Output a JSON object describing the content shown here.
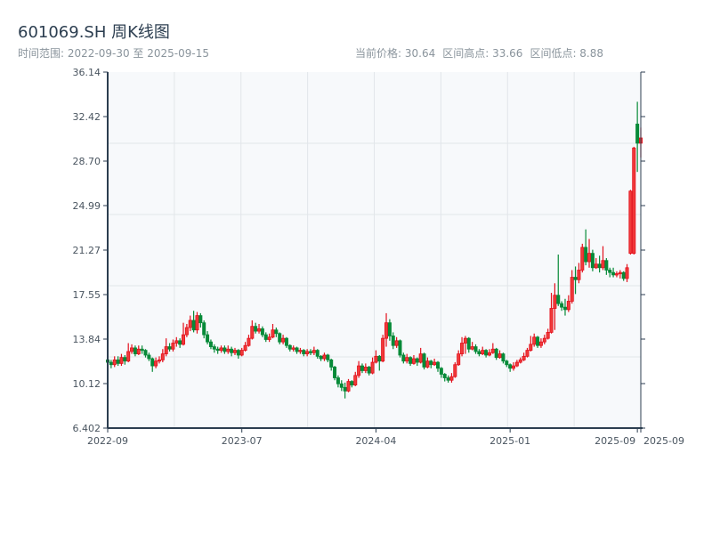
{
  "header": {
    "title": "601069.SH 周K线图",
    "subtitle": "时间范围: 2022-09-30 至 2025-09-15",
    "current_price": "当前价格: 30.64",
    "range_high": "区间高点: 33.66",
    "range_low": "区间低点: 8.88"
  },
  "chart_data": {
    "type": "candlestick",
    "frequency": "weekly",
    "start_date": "2022-09-30",
    "end_date": "2025-09-15",
    "ylim": [
      6.402,
      36.14
    ],
    "yticks": [
      "36.14",
      "32.42",
      "28.70",
      "24.99",
      "21.27",
      "17.55",
      "13.84",
      "10.12",
      "6.402"
    ],
    "xticks": [
      "2022-09",
      "2023-07",
      "2024-04",
      "2025-01",
      "2025-09",
      "2025-09"
    ],
    "grid": true,
    "colors": {
      "up": "#e3101c",
      "down": "#078a38",
      "axis": "#2c3e50",
      "grid": "#e2e6ea",
      "plot_bg": "#f7f9fb"
    },
    "open": [
      12.1,
      11.9,
      11.7,
      12.1,
      11.8,
      12.3,
      12.0,
      12.8,
      13.1,
      12.6,
      13.0,
      12.9,
      12.5,
      12.2,
      11.6,
      12.0,
      12.1,
      12.6,
      13.2,
      13.0,
      13.5,
      13.7,
      13.4,
      14.2,
      14.8,
      15.4,
      14.6,
      15.8,
      15.2,
      14.2,
      13.6,
      13.2,
      13.0,
      12.9,
      13.1,
      12.8,
      13.0,
      12.7,
      12.9,
      12.5,
      12.9,
      13.3,
      13.9,
      14.9,
      14.5,
      14.7,
      14.2,
      13.8,
      14.0,
      14.6,
      14.3,
      13.6,
      13.9,
      13.3,
      13.0,
      13.1,
      12.8,
      12.9,
      12.6,
      12.8,
      12.7,
      12.9,
      12.4,
      12.2,
      12.5,
      12.1,
      11.5,
      10.6,
      10.1,
      9.8,
      9.5,
      10.3,
      10.0,
      10.8,
      11.6,
      11.2,
      11.5,
      11.0,
      11.9,
      12.4,
      12.0,
      13.9,
      15.2,
      14.1,
      13.3,
      13.7,
      12.5,
      12.0,
      12.3,
      11.8,
      12.2,
      11.9,
      12.6,
      11.5,
      12.0,
      11.7,
      11.9,
      11.4,
      10.9,
      10.6,
      10.4,
      10.7,
      11.7,
      12.6,
      13.5,
      13.9,
      13.0,
      13.2,
      12.8,
      12.6,
      12.9,
      12.5,
      12.7,
      13.0,
      12.3,
      12.6,
      12.0,
      11.7,
      11.4,
      11.6,
      11.9,
      12.1,
      12.4,
      12.9,
      13.4,
      14.0,
      13.3,
      13.6,
      13.9,
      14.4,
      16.4,
      17.5,
      16.8,
      16.5,
      16.3,
      17.0,
      19.0,
      18.8,
      19.6,
      21.5,
      20.3,
      21.0,
      19.8,
      20.1,
      19.8,
      20.4,
      19.6,
      19.4,
      19.2,
      19.3,
      19.4,
      18.9,
      21.0,
      21.0,
      31.8,
      30.2
    ],
    "high": [
      12.3,
      12.1,
      12.4,
      12.4,
      12.6,
      12.5,
      13.5,
      13.4,
      13.3,
      13.3,
      13.3,
      13.0,
      12.7,
      12.3,
      12.3,
      12.4,
      13.0,
      13.9,
      13.5,
      13.8,
      14.0,
      13.9,
      15.2,
      15.1,
      15.8,
      16.2,
      16.1,
      16.0,
      15.4,
      14.5,
      13.8,
      13.4,
      13.2,
      13.3,
      13.3,
      13.3,
      13.2,
      13.1,
      13.0,
      13.1,
      13.6,
      14.2,
      15.4,
      15.2,
      15.1,
      14.9,
      14.4,
      14.3,
      15.1,
      14.8,
      14.4,
      14.2,
      14.0,
      13.4,
      13.3,
      13.2,
      13.1,
      13.0,
      13.0,
      13.0,
      13.2,
      13.0,
      12.5,
      12.7,
      12.6,
      12.2,
      11.6,
      10.8,
      10.4,
      10.2,
      10.5,
      10.4,
      11.1,
      12.0,
      11.8,
      11.8,
      11.6,
      12.3,
      12.9,
      12.5,
      14.2,
      16.0,
      15.5,
      14.4,
      14.0,
      13.8,
      12.7,
      12.6,
      12.4,
      12.5,
      12.3,
      13.1,
      12.7,
      12.3,
      12.1,
      12.2,
      12.0,
      11.5,
      11.0,
      10.8,
      11.0,
      11.9,
      12.9,
      14.0,
      14.1,
      14.0,
      13.6,
      13.4,
      13.0,
      13.2,
      13.0,
      13.0,
      13.5,
      13.1,
      12.9,
      12.7,
      12.1,
      11.8,
      11.9,
      12.1,
      12.3,
      12.7,
      13.1,
      14.1,
      14.3,
      14.1,
      13.9,
      14.2,
      14.7,
      17.7,
      18.5,
      20.9,
      17.0,
      17.2,
      17.5,
      19.6,
      19.9,
      20.2,
      21.8,
      23.0,
      22.2,
      21.3,
      20.6,
      20.8,
      21.6,
      20.6,
      19.8,
      19.8,
      19.5,
      19.6,
      19.5,
      20.1,
      26.3,
      29.9,
      33.66,
      31.5
    ],
    "low": [
      11.6,
      11.4,
      11.5,
      11.6,
      11.6,
      11.7,
      11.9,
      12.6,
      12.4,
      12.5,
      12.6,
      12.3,
      12.0,
      11.1,
      11.4,
      11.8,
      11.9,
      12.4,
      12.8,
      12.8,
      13.2,
      13.1,
      13.3,
      14.0,
      14.5,
      14.4,
      14.3,
      14.8,
      13.9,
      13.4,
      13.0,
      12.7,
      12.6,
      12.7,
      12.6,
      12.6,
      12.4,
      12.5,
      12.2,
      12.4,
      12.8,
      13.2,
      13.8,
      14.3,
      14.3,
      14.0,
      13.6,
      13.6,
      13.9,
      14.0,
      13.4,
      13.4,
      13.1,
      12.8,
      12.8,
      12.6,
      12.6,
      12.4,
      12.4,
      12.5,
      12.5,
      12.2,
      12.0,
      12.0,
      11.9,
      11.2,
      10.4,
      9.8,
      9.5,
      8.88,
      9.4,
      9.8,
      9.9,
      10.6,
      11.0,
      11.0,
      10.8,
      10.9,
      11.8,
      11.2,
      11.9,
      13.2,
      13.7,
      13.0,
      13.1,
      12.3,
      11.8,
      11.8,
      11.6,
      11.7,
      11.6,
      11.8,
      11.3,
      11.4,
      11.4,
      11.6,
      11.1,
      10.6,
      10.3,
      10.2,
      10.2,
      10.6,
      11.6,
      12.4,
      12.6,
      12.7,
      12.9,
      12.6,
      12.4,
      12.5,
      12.3,
      12.4,
      12.6,
      12.1,
      12.2,
      11.8,
      11.5,
      11.1,
      11.2,
      11.5,
      11.8,
      12.0,
      12.3,
      12.8,
      13.2,
      13.1,
      13.1,
      13.4,
      13.8,
      14.3,
      14.6,
      16.6,
      16.2,
      15.8,
      16.1,
      16.8,
      17.6,
      18.5,
      19.4,
      20.0,
      19.8,
      19.5,
      19.7,
      19.4,
      19.6,
      19.2,
      19.0,
      19.0,
      19.0,
      18.9,
      18.7,
      18.6,
      20.9,
      20.9,
      27.8,
      29.0
    ],
    "close": [
      11.9,
      11.7,
      12.1,
      11.8,
      12.3,
      12.0,
      12.8,
      13.1,
      12.6,
      13.0,
      12.9,
      12.5,
      12.2,
      11.6,
      12.0,
      12.1,
      12.6,
      13.2,
      13.0,
      13.5,
      13.7,
      13.4,
      14.2,
      14.8,
      15.4,
      14.6,
      15.8,
      15.2,
      14.2,
      13.6,
      13.2,
      13.0,
      12.9,
      13.1,
      12.8,
      13.0,
      12.7,
      12.9,
      12.5,
      12.9,
      13.3,
      13.9,
      14.9,
      14.5,
      14.7,
      14.2,
      13.8,
      14.0,
      14.6,
      14.3,
      13.6,
      13.9,
      13.3,
      13.0,
      13.1,
      12.8,
      12.9,
      12.6,
      12.8,
      12.7,
      12.9,
      12.4,
      12.2,
      12.5,
      12.1,
      11.5,
      10.6,
      10.1,
      9.8,
      9.5,
      10.3,
      10.0,
      10.8,
      11.6,
      11.2,
      11.5,
      11.0,
      11.9,
      12.4,
      12.0,
      13.9,
      15.2,
      14.1,
      13.3,
      13.7,
      12.5,
      12.0,
      12.3,
      11.8,
      12.2,
      11.9,
      12.6,
      11.5,
      12.0,
      11.7,
      11.9,
      11.4,
      10.9,
      10.6,
      10.4,
      10.7,
      11.7,
      12.6,
      13.5,
      13.9,
      13.0,
      13.2,
      12.8,
      12.6,
      12.9,
      12.5,
      12.7,
      13.0,
      12.3,
      12.6,
      12.0,
      11.7,
      11.4,
      11.6,
      11.9,
      12.1,
      12.4,
      12.9,
      13.4,
      14.0,
      13.3,
      13.6,
      13.9,
      14.4,
      16.4,
      17.5,
      16.8,
      16.5,
      16.3,
      17.0,
      19.0,
      18.8,
      19.6,
      21.5,
      20.3,
      21.0,
      19.8,
      20.1,
      19.8,
      20.4,
      19.6,
      19.4,
      19.2,
      19.3,
      19.4,
      18.9,
      19.8,
      26.2,
      29.8,
      30.2,
      30.64
    ]
  }
}
